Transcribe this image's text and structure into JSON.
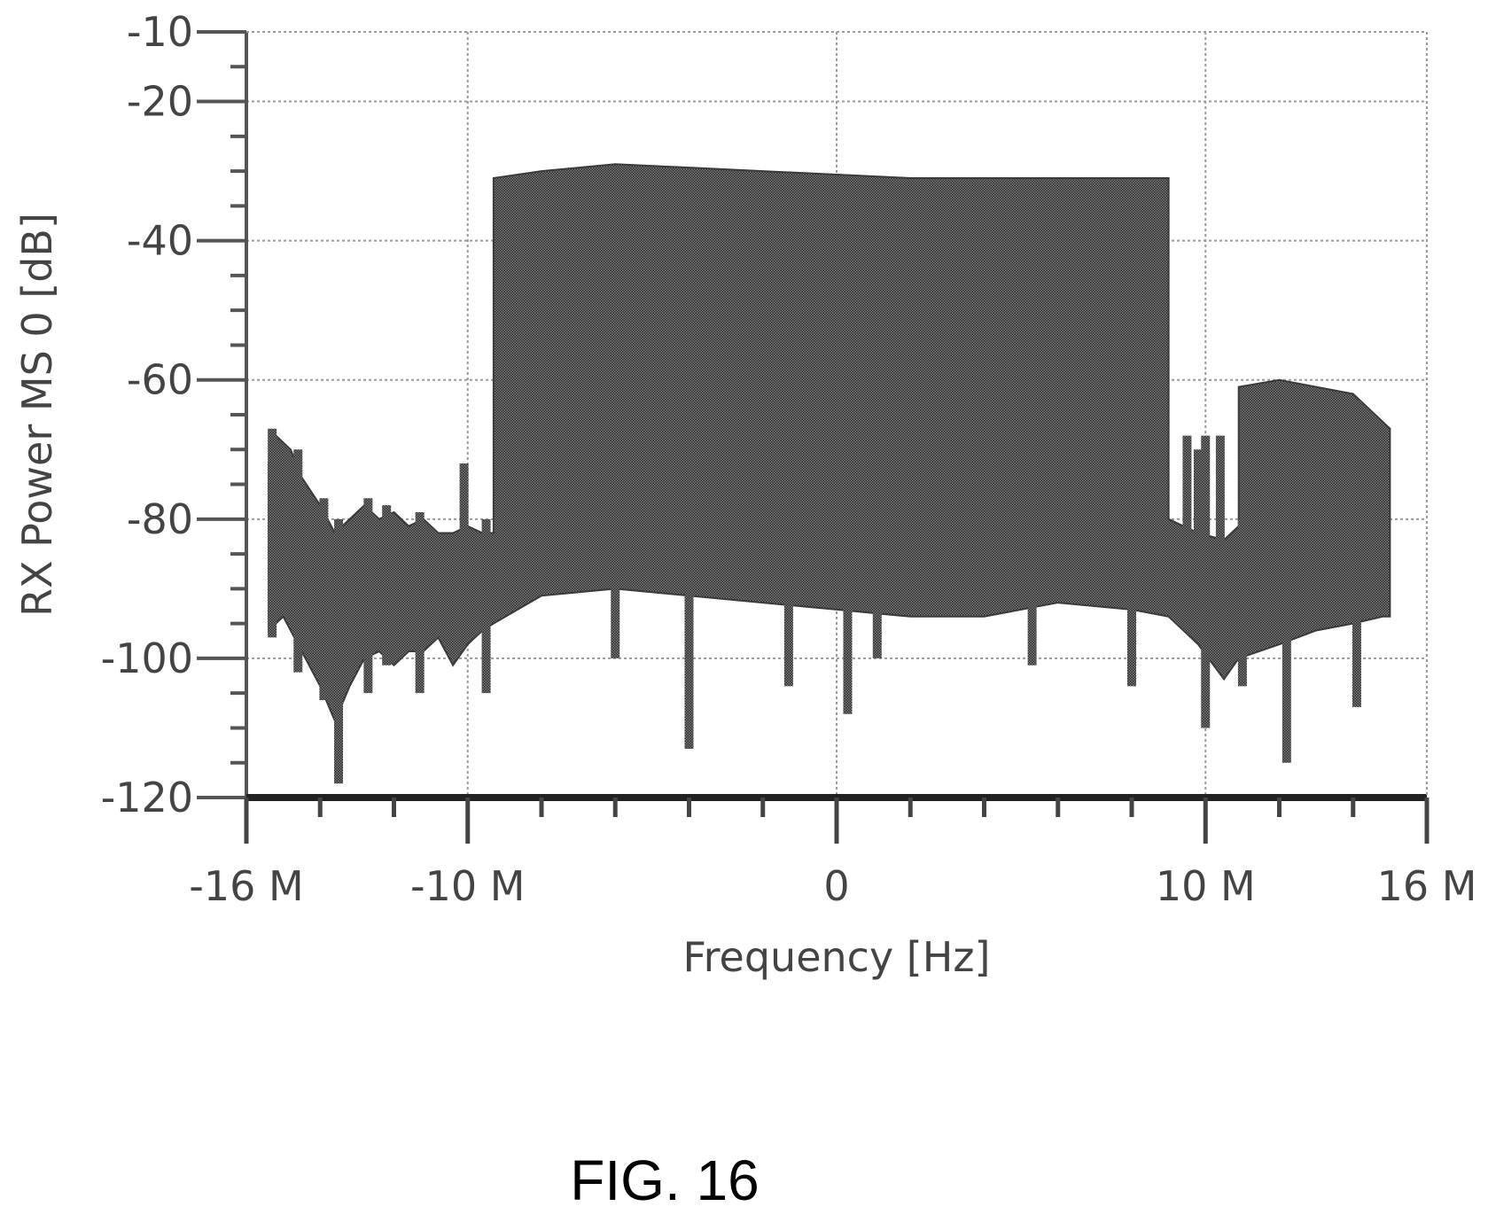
{
  "chart_data": {
    "type": "area",
    "xlabel": "Frequency [Hz]",
    "ylabel": "RX Power MS 0 [dB]",
    "xlim": [
      -16,
      16
    ],
    "ylim": [
      -120,
      -10
    ],
    "x_unit": "MHz",
    "x_ticks": [
      {
        "value": -16,
        "label": "-16 M"
      },
      {
        "value": -10,
        "label": "-10 M"
      },
      {
        "value": 0,
        "label": "0"
      },
      {
        "value": 10,
        "label": "10 M"
      },
      {
        "value": 16,
        "label": "16 M"
      }
    ],
    "y_ticks": [
      {
        "value": -10,
        "label": "-10"
      },
      {
        "value": -20,
        "label": "-20"
      },
      {
        "value": -40,
        "label": "-40"
      },
      {
        "value": -60,
        "label": "-60"
      },
      {
        "value": -80,
        "label": "-80"
      },
      {
        "value": -100,
        "label": "-100"
      },
      {
        "value": -120,
        "label": "-120"
      }
    ],
    "grid": true,
    "fill_color": "#4a4a4a",
    "series": [
      {
        "upper": [
          [
            -15.4,
            -72
          ],
          [
            -15.2,
            -68
          ],
          [
            -14.8,
            -70
          ],
          [
            -14.5,
            -74
          ],
          [
            -14.0,
            -78
          ],
          [
            -13.6,
            -82
          ],
          [
            -13.2,
            -80
          ],
          [
            -12.8,
            -78
          ],
          [
            -12.4,
            -80
          ],
          [
            -12.0,
            -79
          ],
          [
            -11.6,
            -81
          ],
          [
            -11.2,
            -80
          ],
          [
            -10.8,
            -82
          ],
          [
            -10.4,
            -82
          ],
          [
            -10.0,
            -81
          ],
          [
            -9.6,
            -82
          ],
          [
            -9.3,
            -82
          ],
          [
            -9.3,
            -31
          ],
          [
            -8.0,
            -30
          ],
          [
            -6.0,
            -29
          ],
          [
            -4.0,
            -29.5
          ],
          [
            -2.0,
            -30
          ],
          [
            0.0,
            -30.5
          ],
          [
            2.0,
            -31
          ],
          [
            4.0,
            -31
          ],
          [
            6.0,
            -31
          ],
          [
            8.0,
            -31
          ],
          [
            9.0,
            -31
          ],
          [
            9.0,
            -80
          ],
          [
            9.8,
            -82
          ],
          [
            10.5,
            -83
          ],
          [
            10.9,
            -81
          ],
          [
            10.9,
            -61
          ],
          [
            12.0,
            -60
          ],
          [
            13.0,
            -61
          ],
          [
            14.0,
            -62
          ],
          [
            14.8,
            -66
          ],
          [
            15.0,
            -67
          ]
        ],
        "lower": [
          [
            -15.4,
            -96
          ],
          [
            -15.0,
            -94
          ],
          [
            -14.5,
            -99
          ],
          [
            -14.0,
            -104
          ],
          [
            -13.6,
            -109
          ],
          [
            -13.2,
            -104
          ],
          [
            -12.8,
            -100
          ],
          [
            -12.4,
            -99
          ],
          [
            -12.0,
            -101
          ],
          [
            -11.6,
            -99
          ],
          [
            -11.2,
            -99
          ],
          [
            -10.8,
            -97
          ],
          [
            -10.4,
            -101
          ],
          [
            -10.0,
            -98
          ],
          [
            -9.6,
            -96
          ],
          [
            -9.3,
            -95
          ],
          [
            -8.0,
            -91
          ],
          [
            -6.0,
            -90
          ],
          [
            -4.0,
            -91
          ],
          [
            -2.0,
            -92
          ],
          [
            0.0,
            -93
          ],
          [
            2.0,
            -94
          ],
          [
            4.0,
            -94
          ],
          [
            6.0,
            -92
          ],
          [
            8.0,
            -93
          ],
          [
            9.0,
            -94
          ],
          [
            9.8,
            -98
          ],
          [
            10.5,
            -103
          ],
          [
            10.9,
            -100
          ],
          [
            12.0,
            -98
          ],
          [
            13.0,
            -96
          ],
          [
            14.0,
            -95
          ],
          [
            14.8,
            -94
          ],
          [
            15.0,
            -94
          ]
        ]
      }
    ],
    "spikes": [
      {
        "x": -15.3,
        "top": -67,
        "bottom": -97
      },
      {
        "x": -14.6,
        "top": -70,
        "bottom": -102
      },
      {
        "x": -13.9,
        "top": -77,
        "bottom": -106
      },
      {
        "x": -13.5,
        "top": -80,
        "bottom": -118
      },
      {
        "x": -12.7,
        "top": -77,
        "bottom": -105
      },
      {
        "x": -12.2,
        "top": -78,
        "bottom": -101
      },
      {
        "x": -11.3,
        "top": -79,
        "bottom": -105
      },
      {
        "x": -10.1,
        "top": -72,
        "bottom": -97
      },
      {
        "x": -9.5,
        "top": -80,
        "bottom": -105
      },
      {
        "x": -6.0,
        "top": -60,
        "bottom": -100
      },
      {
        "x": -4.0,
        "top": -60,
        "bottom": -113
      },
      {
        "x": -1.3,
        "top": -60,
        "bottom": -104
      },
      {
        "x": 0.3,
        "top": -60,
        "bottom": -108
      },
      {
        "x": 1.1,
        "top": -60,
        "bottom": -100
      },
      {
        "x": 5.3,
        "top": -60,
        "bottom": -101
      },
      {
        "x": 8.0,
        "top": -60,
        "bottom": -104
      },
      {
        "x": 9.5,
        "top": -68,
        "bottom": -90
      },
      {
        "x": 9.8,
        "top": -70,
        "bottom": -92
      },
      {
        "x": 10.0,
        "top": -68,
        "bottom": -110
      },
      {
        "x": 10.4,
        "top": -68,
        "bottom": -95
      },
      {
        "x": 11.0,
        "top": -80,
        "bottom": -104
      },
      {
        "x": 12.2,
        "top": -62,
        "bottom": -115
      },
      {
        "x": 14.1,
        "top": -63,
        "bottom": -107
      }
    ]
  },
  "caption": "FIG. 16"
}
